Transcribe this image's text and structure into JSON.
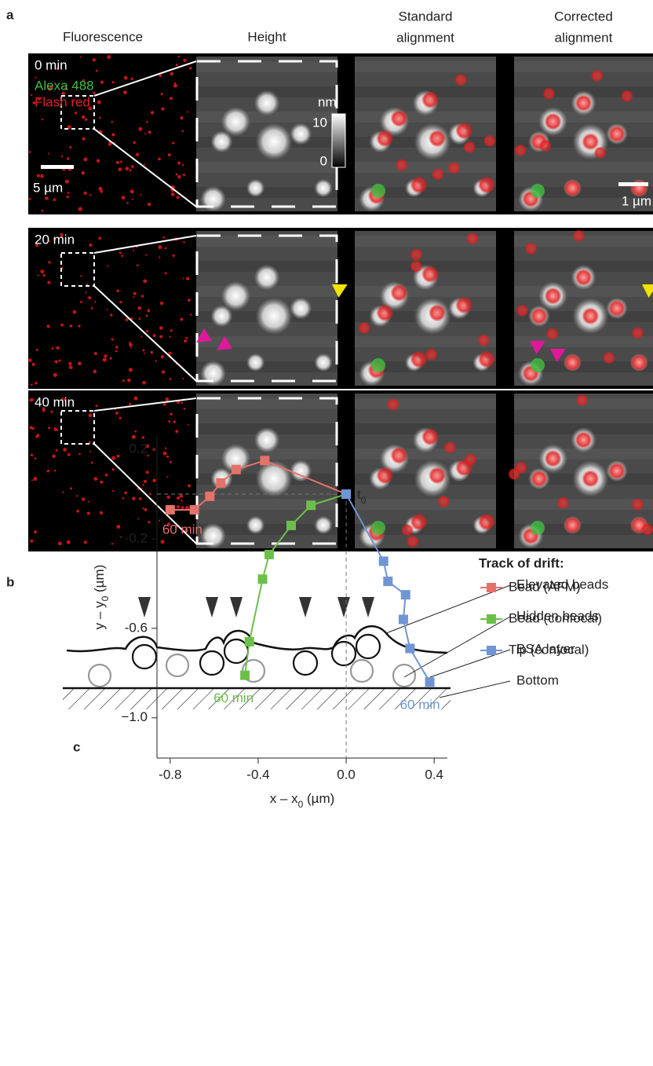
{
  "panel_labels": [
    "a",
    "b",
    "c"
  ],
  "panel_a": {
    "column_headers": [
      [
        "Fluorescence"
      ],
      [
        "Height"
      ],
      [
        "Standard",
        "alignment"
      ],
      [
        "Corrected",
        "alignment"
      ]
    ],
    "row_times": [
      "0 min",
      "20 min",
      "40 min"
    ],
    "channels": [
      {
        "name": "Alexa 488",
        "color": "#3fbf3f"
      },
      {
        "name": "Flash red",
        "color": "#e02020"
      }
    ],
    "scale_bar_fluorescence": "5 µm",
    "scale_bar_zoom": "1 µm",
    "colorbar": {
      "unit": "nm",
      "top": "10",
      "bottom": "0"
    }
  },
  "panel_b": {
    "labels": [
      "Elevated beads",
      "Hidden beads",
      "BSA layer",
      "Bottom"
    ]
  },
  "chart_data": {
    "type": "line",
    "x_label": [
      "x – x",
      "0",
      " (µm)"
    ],
    "y_label": [
      "y – y",
      "0",
      " (µm)"
    ],
    "xlim": [
      -0.86,
      0.46
    ],
    "ylim": [
      -1.18,
      0.26
    ],
    "xticks": [
      {
        "value": -0.8,
        "label": "-0.8"
      },
      {
        "value": -0.4,
        "label": "-0.4"
      },
      {
        "value": 0,
        "label": "0.0"
      },
      {
        "value": 0.4,
        "label": "0.4"
      }
    ],
    "yticks": [
      {
        "value": 0.2,
        "label": "0.2"
      },
      {
        "value": -0.2,
        "label": "-0.2"
      },
      {
        "value": -0.6,
        "label": "-0.6"
      },
      {
        "value": -1.0,
        "label": "−1.0"
      }
    ],
    "start_label": [
      "t",
      "0"
    ],
    "legend_title": "Track of drift:",
    "series": [
      {
        "name": "Bead (AFM)",
        "color": "#e5726a",
        "end_label": "60 min",
        "x": [
          0,
          -0.37,
          -0.5,
          -0.57,
          -0.62,
          -0.69,
          -0.8
        ],
        "y": [
          0,
          0.15,
          0.11,
          0.05,
          -0.01,
          -0.07,
          -0.07
        ]
      },
      {
        "name": "Bead (confocal)",
        "color": "#6cc04a",
        "end_label": "60 min",
        "x": [
          0,
          -0.16,
          -0.25,
          -0.35,
          -0.38,
          -0.44,
          -0.46
        ],
        "y": [
          0,
          -0.05,
          -0.14,
          -0.27,
          -0.38,
          -0.66,
          -0.81
        ]
      },
      {
        "name": "Tip (confocal)",
        "color": "#6f95d2",
        "end_label": "60 min",
        "x": [
          0,
          0.17,
          0.19,
          0.27,
          0.26,
          0.29,
          0.38
        ],
        "y": [
          0,
          -0.3,
          -0.39,
          -0.45,
          -0.56,
          -0.69,
          -0.84
        ]
      }
    ]
  }
}
